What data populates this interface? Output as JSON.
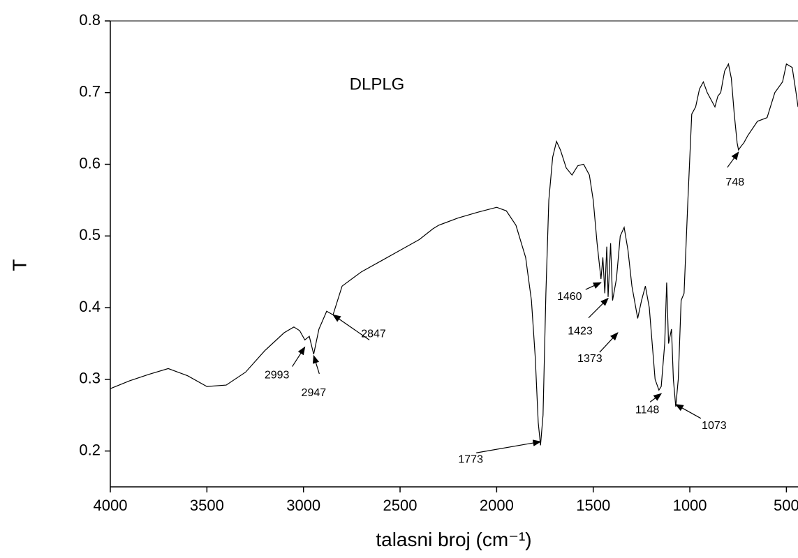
{
  "chart_data": {
    "type": "line",
    "xlabel": "talasni broj (cm⁻¹)",
    "ylabel": "T",
    "annotation": "DLPLG",
    "xlim": [
      4000,
      440
    ],
    "ylim": [
      0.15,
      0.8
    ],
    "xticks": [
      4000,
      3500,
      3000,
      2500,
      2000,
      1500,
      1000,
      500
    ],
    "yticks": [
      0.2,
      0.3,
      0.4,
      0.5,
      0.6,
      0.7,
      0.8
    ],
    "color": "#000000",
    "x": [
      4000,
      3900,
      3800,
      3700,
      3600,
      3500,
      3400,
      3300,
      3200,
      3100,
      3050,
      3020,
      2993,
      2970,
      2947,
      2920,
      2880,
      2847,
      2800,
      2700,
      2600,
      2500,
      2400,
      2330,
      2300,
      2200,
      2100,
      2000,
      1950,
      1900,
      1850,
      1820,
      1800,
      1785,
      1773,
      1760,
      1745,
      1730,
      1710,
      1690,
      1670,
      1640,
      1610,
      1580,
      1550,
      1520,
      1500,
      1480,
      1460,
      1450,
      1440,
      1430,
      1423,
      1410,
      1400,
      1380,
      1360,
      1340,
      1320,
      1300,
      1270,
      1250,
      1230,
      1210,
      1180,
      1160,
      1148,
      1130,
      1120,
      1110,
      1095,
      1085,
      1073,
      1060,
      1045,
      1030,
      1010,
      990,
      970,
      950,
      930,
      910,
      890,
      870,
      855,
      840,
      820,
      800,
      785,
      770,
      755,
      748,
      735,
      720,
      700,
      650,
      600,
      560,
      520,
      500,
      470,
      450,
      440
    ],
    "values": [
      0.287,
      0.298,
      0.307,
      0.315,
      0.305,
      0.29,
      0.292,
      0.31,
      0.34,
      0.365,
      0.373,
      0.368,
      0.355,
      0.36,
      0.335,
      0.37,
      0.395,
      0.39,
      0.43,
      0.45,
      0.465,
      0.48,
      0.495,
      0.51,
      0.515,
      0.525,
      0.533,
      0.54,
      0.535,
      0.515,
      0.47,
      0.41,
      0.33,
      0.24,
      0.208,
      0.25,
      0.42,
      0.55,
      0.61,
      0.632,
      0.62,
      0.595,
      0.585,
      0.598,
      0.6,
      0.585,
      0.55,
      0.49,
      0.44,
      0.47,
      0.42,
      0.485,
      0.415,
      0.49,
      0.41,
      0.44,
      0.5,
      0.512,
      0.48,
      0.43,
      0.385,
      0.41,
      0.43,
      0.4,
      0.3,
      0.285,
      0.29,
      0.35,
      0.435,
      0.35,
      0.37,
      0.3,
      0.262,
      0.3,
      0.41,
      0.42,
      0.55,
      0.67,
      0.68,
      0.705,
      0.715,
      0.7,
      0.69,
      0.68,
      0.695,
      0.7,
      0.73,
      0.74,
      0.72,
      0.67,
      0.63,
      0.62,
      0.625,
      0.63,
      0.64,
      0.66,
      0.665,
      0.7,
      0.715,
      0.74,
      0.735,
      0.7,
      0.68
    ],
    "annotations": [
      {
        "x": 2993,
        "y": 0.345
      },
      {
        "x": 2947,
        "y": 0.333
      },
      {
        "x": 2847,
        "y": 0.39
      },
      {
        "x": 1773,
        "y": 0.213
      },
      {
        "x": 1460,
        "y": 0.435
      },
      {
        "x": 1423,
        "y": 0.413
      },
      {
        "x": 1373,
        "y": 0.365
      },
      {
        "x": 1148,
        "y": 0.28
      },
      {
        "x": 1073,
        "y": 0.265
      },
      {
        "x": 748,
        "y": 0.617
      }
    ]
  }
}
